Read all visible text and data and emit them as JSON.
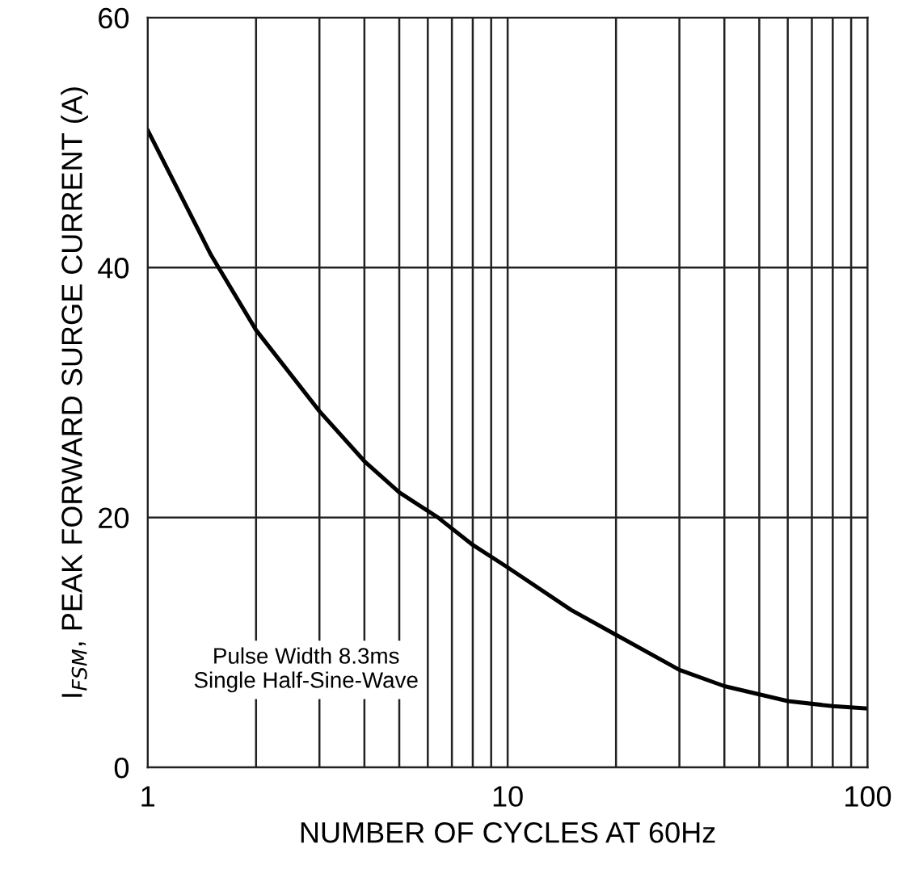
{
  "chart_data": {
    "type": "line",
    "xlabel": "NUMBER OF CYCLES AT 60Hz",
    "ylabel": "I$_{FSM}$, PEAK FORWARD SURGE CURRENT (A)",
    "log": "x",
    "xlim": [
      1,
      100
    ],
    "ylim": [
      0,
      60
    ],
    "xticks": [
      1,
      {
        "value": 2,
        "label": null
      },
      {
        "value": 3,
        "label": null
      },
      {
        "value": 4,
        "label": null
      },
      {
        "value": 5,
        "label": null
      },
      {
        "value": 6,
        "label": null
      },
      {
        "value": 7,
        "label": null
      },
      {
        "value": 8,
        "label": null
      },
      {
        "value": 9,
        "label": null
      },
      10,
      {
        "value": 20,
        "label": null
      },
      {
        "value": 30,
        "label": null
      },
      {
        "value": 40,
        "label": null
      },
      {
        "value": 50,
        "label": null
      },
      {
        "value": 60,
        "label": null
      },
      {
        "value": 70,
        "label": null
      },
      {
        "value": 80,
        "label": null
      },
      {
        "value": 90,
        "label": null
      },
      100
    ],
    "yticks": [
      0,
      20,
      40,
      60
    ],
    "grid": true,
    "marker": "none",
    "line_style": "solid",
    "series": [
      {
        "color": "#000000",
        "x": [
          1,
          1.5,
          2,
          3,
          4,
          5,
          6.4,
          8,
          10,
          15,
          20,
          30,
          40,
          60,
          80,
          100
        ],
        "values": [
          51,
          41,
          35,
          28.5,
          24.5,
          22,
          20,
          17.8,
          16,
          12.6,
          10.6,
          7.8,
          6.5,
          5.3,
          4.9,
          4.7
        ]
      }
    ],
    "annotations": [
      "Pulse Width 8.3ms\nSingle Half-Sine-Wave"
    ]
  }
}
